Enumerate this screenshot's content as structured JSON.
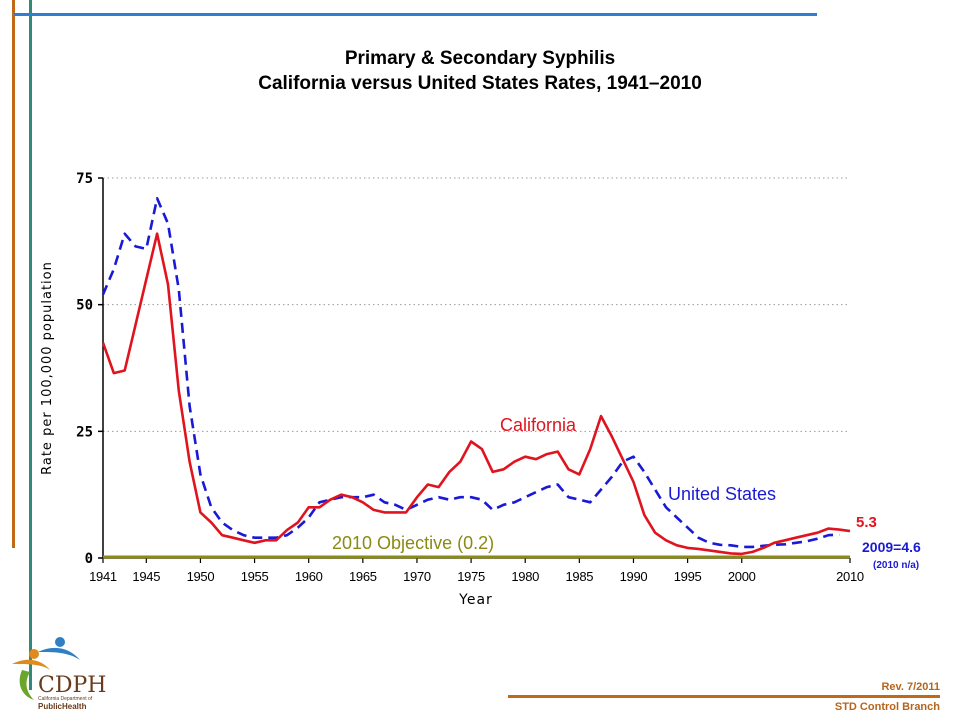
{
  "title_line1": "Primary & Secondary Syphilis",
  "title_line2": "California versus United States Rates, 1941–2010",
  "footer": {
    "revision": "Rev. 7/2011",
    "branch": "STD Control Branch",
    "logo_text": "CDPH",
    "logo_sub1": "California Department of",
    "logo_sub2": "PublicHealth"
  },
  "colors": {
    "california": "#e0141e",
    "united_states": "#1a1ad6",
    "objective": "#8a8a14"
  },
  "chart_data": {
    "type": "line",
    "xlabel": "Year",
    "ylabel": "Rate per 100,000 population",
    "xlim": [
      1941,
      2010
    ],
    "ylim": [
      0,
      75
    ],
    "yticks": [
      0,
      25,
      50,
      75
    ],
    "xticks": [
      "1941",
      "1945",
      "1950",
      "1955",
      "1960",
      "1965",
      "1970",
      "1975",
      "1980",
      "1985",
      "1990",
      "1995",
      "2000",
      "2010"
    ],
    "grid": "horizontal dotted",
    "series": [
      {
        "name": "California",
        "style": "solid",
        "x": [
          1941,
          1942,
          1943,
          1944,
          1945,
          1946,
          1947,
          1948,
          1949,
          1950,
          1951,
          1952,
          1953,
          1954,
          1955,
          1956,
          1957,
          1958,
          1959,
          1960,
          1961,
          1962,
          1963,
          1964,
          1965,
          1966,
          1967,
          1968,
          1969,
          1970,
          1971,
          1972,
          1973,
          1974,
          1975,
          1976,
          1977,
          1978,
          1979,
          1980,
          1981,
          1982,
          1983,
          1984,
          1985,
          1986,
          1987,
          1988,
          1989,
          1990,
          1991,
          1992,
          1993,
          1994,
          1995,
          1996,
          1997,
          1998,
          1999,
          2000,
          2001,
          2002,
          2003,
          2004,
          2005,
          2006,
          2007,
          2008,
          2009,
          2010
        ],
        "values": [
          42.5,
          36.5,
          37,
          46,
          55,
          64,
          54,
          33,
          19,
          9,
          7,
          4.5,
          4,
          3.5,
          3,
          3.5,
          3.5,
          5.5,
          7,
          10,
          10,
          11.5,
          12.5,
          12,
          11,
          9.5,
          9,
          9,
          9,
          12,
          14.5,
          14,
          17,
          19,
          23,
          21.5,
          17,
          17.5,
          19,
          20,
          19.5,
          20.5,
          21,
          17.5,
          16.5,
          21.5,
          28,
          24,
          19.5,
          15,
          8.5,
          5,
          3.5,
          2.5,
          2,
          1.8,
          1.5,
          1.2,
          0.9,
          0.8,
          1.2,
          2,
          3,
          3.5,
          4,
          4.5,
          5,
          5.8,
          5.6,
          5.3
        ]
      },
      {
        "name": "United States",
        "style": "dashed",
        "x": [
          1941,
          1942,
          1943,
          1944,
          1945,
          1946,
          1947,
          1948,
          1949,
          1950,
          1951,
          1952,
          1953,
          1954,
          1955,
          1956,
          1957,
          1958,
          1959,
          1960,
          1961,
          1962,
          1963,
          1964,
          1965,
          1966,
          1967,
          1968,
          1969,
          1970,
          1971,
          1972,
          1973,
          1974,
          1975,
          1976,
          1977,
          1978,
          1979,
          1980,
          1981,
          1982,
          1983,
          1984,
          1985,
          1986,
          1987,
          1988,
          1989,
          1990,
          1991,
          1992,
          1993,
          1994,
          1995,
          1996,
          1997,
          1998,
          1999,
          2000,
          2001,
          2002,
          2003,
          2004,
          2005,
          2006,
          2007,
          2008,
          2009
        ],
        "values": [
          52,
          57,
          64,
          61.5,
          61,
          71,
          66,
          53,
          30,
          16.5,
          10,
          7,
          5.5,
          4.5,
          4,
          4,
          4,
          4.5,
          6,
          8,
          11,
          11.5,
          12,
          12,
          12,
          12.5,
          11,
          10.5,
          9.5,
          10.5,
          11.5,
          12,
          11.5,
          12,
          12,
          11.5,
          9.5,
          10.5,
          11,
          12,
          13,
          14,
          14.5,
          12,
          11.5,
          11,
          13.5,
          16,
          19,
          20,
          17,
          13.5,
          10,
          8,
          6,
          4,
          3,
          2.6,
          2.5,
          2.2,
          2.2,
          2.4,
          2.6,
          2.7,
          3,
          3.3,
          3.8,
          4.5,
          4.6
        ]
      },
      {
        "name": "2010 Objective (0.2)",
        "style": "solid",
        "x": [
          1941,
          2010
        ],
        "values": [
          0.2,
          0.2
        ]
      }
    ],
    "annotations": {
      "california_label": "California",
      "us_label": "United States",
      "objective_label": "2010 Objective (0.2)",
      "ca_end_value": "5.3",
      "us_end_value": "2009=4.6",
      "us_note": "(2010 n/a)"
    }
  }
}
